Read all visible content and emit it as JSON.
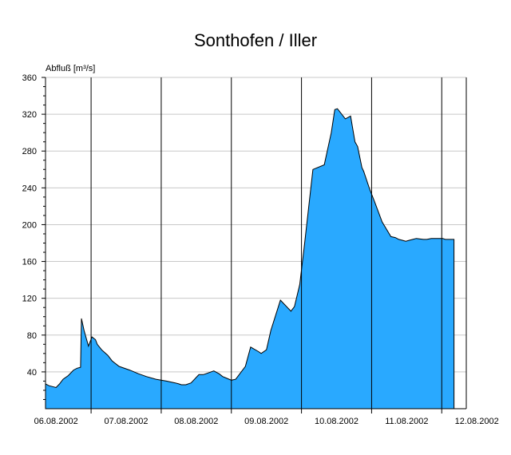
{
  "chart_data": {
    "type": "area",
    "title": "Sonthofen / Iller",
    "ylabel": "Abfluß [m³/s]",
    "xlabel": "",
    "ylim": [
      0,
      360
    ],
    "yticks": [
      40,
      80,
      120,
      160,
      200,
      240,
      280,
      320,
      360
    ],
    "xlim_days": [
      "05.08.2002 14:00",
      "12.08.2002 20:00"
    ],
    "day_labels": [
      "06.08.2002",
      "07.08.2002",
      "08.08.2002",
      "09.08.2002",
      "10.08.2002",
      "11.08.2002",
      "12.08.2002"
    ],
    "grid": true,
    "colors": {
      "fill": "#29a9ff",
      "line": "#000000",
      "grid": "#c8c8c8"
    },
    "series": [
      {
        "x": [
          0.0,
          0.2,
          0.4,
          0.6,
          0.8,
          1.0,
          1.3,
          1.6,
          1.8,
          2.0,
          2.05,
          2.2,
          2.45,
          2.55,
          2.65,
          2.85,
          2.95,
          3.2,
          3.55,
          3.8,
          4.2,
          4.8,
          5.3,
          5.75,
          6.3,
          6.9,
          7.4,
          7.6,
          7.75,
          8.0,
          8.3,
          8.75,
          9.0,
          9.15,
          9.6,
          9.9,
          10.1,
          10.35,
          10.6,
          10.85,
          11.4,
          11.7,
          12.15,
          12.3,
          12.6,
          12.85,
          13.4,
          13.6,
          14.0,
          14.2,
          14.5,
          14.75,
          15.25,
          15.9,
          16.3,
          16.5,
          16.65,
          17.1,
          17.4,
          17.65,
          17.8,
          18.05,
          18.15,
          18.5,
          18.75,
          19.2,
          19.7,
          19.95,
          20.15,
          20.35,
          20.55,
          20.75,
          20.95,
          21.15,
          21.55,
          21.75,
          22.0,
          22.35,
          22.65,
          22.8,
          23.15,
          23.3
        ],
        "y": [
          27,
          25,
          24,
          23,
          27,
          32,
          36,
          42,
          44,
          45,
          98,
          85,
          68,
          73,
          78,
          75,
          70,
          64,
          58,
          52,
          46,
          42,
          38,
          35,
          32,
          30,
          28,
          27,
          26,
          26,
          28,
          37,
          37,
          38,
          41,
          38,
          35,
          33,
          31,
          32,
          46,
          67,
          62,
          60,
          64,
          85,
          118,
          114,
          106,
          111,
          135,
          175,
          260,
          265,
          300,
          325,
          326,
          315,
          318,
          290,
          285,
          262,
          258,
          238,
          226,
          203,
          187,
          186,
          184,
          183,
          182,
          183,
          184,
          185,
          184,
          184,
          185,
          185,
          185,
          184,
          184,
          184
        ]
      }
    ]
  }
}
